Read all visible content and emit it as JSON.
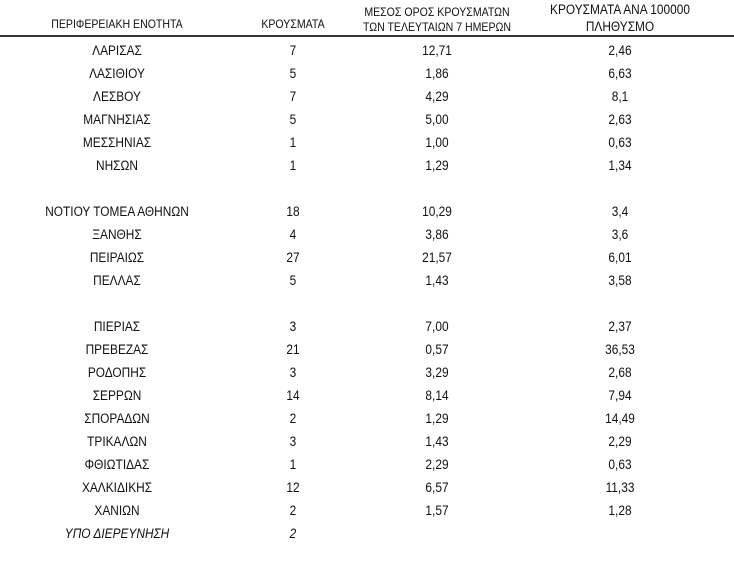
{
  "headers": {
    "region": "ΠΕΡΙΦΕΡΕΙΑΚΗ ΕΝΟΤΗΤΑ",
    "cases": "ΚΡΟΥΣΜΑΤΑ",
    "avg_line1": "ΜΕΣΟΣ ΟΡΟΣ ΚΡΟΥΣΜΑΤΩΝ",
    "avg_line2": "ΤΩΝ ΤΕΛΕΥΤΑΙΩΝ 7 ΗΜΕΡΩΝ",
    "per100k_line1": "ΚΡΟΥΣΜΑΤΑ ΑΝΑ 100000",
    "per100k_line2": "ΠΛΗΘΥΣΜΟ"
  },
  "groups": [
    [
      [
        "ΛΑΡΙΣΑΣ",
        "7",
        "12,71",
        "2,46"
      ],
      [
        "ΛΑΣΙΘΙΟΥ",
        "5",
        "1,86",
        "6,63"
      ],
      [
        "ΛΕΣΒΟΥ",
        "7",
        "4,29",
        "8,1"
      ],
      [
        "ΜΑΓΝΗΣΙΑΣ",
        "5",
        "5,00",
        "2,63"
      ],
      [
        "ΜΕΣΣΗΝΙΑΣ",
        "1",
        "1,00",
        "0,63"
      ],
      [
        "ΝΗΣΩΝ",
        "1",
        "1,29",
        "1,34"
      ]
    ],
    [
      [
        "ΝΟΤΙΟΥ ΤΟΜΕΑ ΑΘΗΝΩΝ",
        "18",
        "10,29",
        "3,4"
      ],
      [
        "ΞΑΝΘΗΣ",
        "4",
        "3,86",
        "3,6"
      ],
      [
        "ΠΕΙΡΑΙΩΣ",
        "27",
        "21,57",
        "6,01"
      ],
      [
        "ΠΕΛΛΑΣ",
        "5",
        "1,43",
        "3,58"
      ]
    ],
    [
      [
        "ΠΙΕΡΙΑΣ",
        "3",
        "7,00",
        "2,37"
      ],
      [
        "ΠΡΕΒΕΖΑΣ",
        "21",
        "0,57",
        "36,53"
      ],
      [
        "ΡΟΔΟΠΗΣ",
        "3",
        "3,29",
        "2,68"
      ],
      [
        "ΣΕΡΡΩΝ",
        "14",
        "8,14",
        "7,94"
      ],
      [
        "ΣΠΟΡΑΔΩΝ",
        "2",
        "1,29",
        "14,49"
      ],
      [
        "ΤΡΙΚΑΛΩΝ",
        "3",
        "1,43",
        "2,29"
      ],
      [
        "ΦΘΙΩΤΙΔΑΣ",
        "1",
        "2,29",
        "0,63"
      ],
      [
        "ΧΑΛΚΙΔΙΚΗΣ",
        "12",
        "6,57",
        "11,33"
      ],
      [
        "ΧΑΝΙΩΝ",
        "2",
        "1,57",
        "1,28"
      ]
    ]
  ],
  "under_investigation": [
    "ΥΠΟ ΔΙΕΡΕΥΝΗΣΗ",
    "2"
  ]
}
